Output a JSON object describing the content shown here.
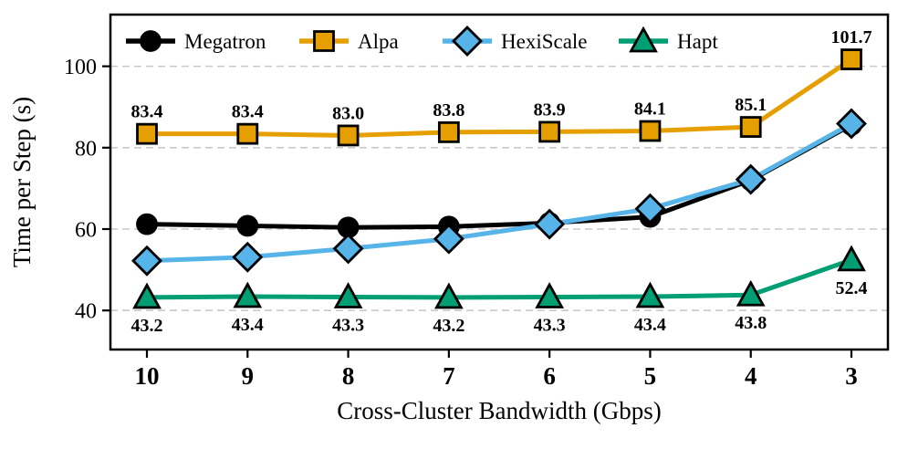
{
  "chart_data": {
    "type": "line",
    "title": "",
    "xlabel": "Cross-Cluster Bandwidth (Gbps)",
    "ylabel": "Time per Step (s)",
    "x_categories": [
      "10",
      "9",
      "8",
      "7",
      "6",
      "5",
      "4",
      "3"
    ],
    "yticks": [
      40,
      60,
      80,
      100
    ],
    "ylim": [
      30.4,
      112.7
    ],
    "grid": "horizontal-dashed",
    "grid_color": "#c9c9c9",
    "legend_position": "top-inside-horizontal",
    "series": [
      {
        "name": "Megatron",
        "color": "#000000",
        "marker": "circle",
        "values": [
          61.2,
          60.8,
          60.4,
          60.6,
          61.5,
          63.0,
          72.0,
          85.6
        ],
        "labels": null,
        "label_side": null
      },
      {
        "name": "Alpa",
        "color": "#E69F00",
        "marker": "square",
        "values": [
          83.4,
          83.4,
          83.0,
          83.8,
          83.9,
          84.1,
          85.1,
          101.7
        ],
        "labels": [
          "83.4",
          "83.4",
          "83.0",
          "83.8",
          "83.9",
          "84.1",
          "85.1",
          "101.7"
        ],
        "label_side": "above"
      },
      {
        "name": "HexiScale",
        "color": "#56B4E9",
        "marker": "diamond",
        "values": [
          52.2,
          53.1,
          55.2,
          57.6,
          61.2,
          65.0,
          72.2,
          85.9
        ],
        "labels": null,
        "label_side": null
      },
      {
        "name": "Hapt",
        "color": "#009E73",
        "marker": "triangle",
        "values": [
          43.2,
          43.4,
          43.3,
          43.2,
          43.3,
          43.4,
          43.8,
          52.4
        ],
        "labels": [
          "43.2",
          "43.4",
          "43.3",
          "43.2",
          "43.3",
          "43.4",
          "43.8",
          "52.4"
        ],
        "label_side": "below"
      }
    ]
  }
}
